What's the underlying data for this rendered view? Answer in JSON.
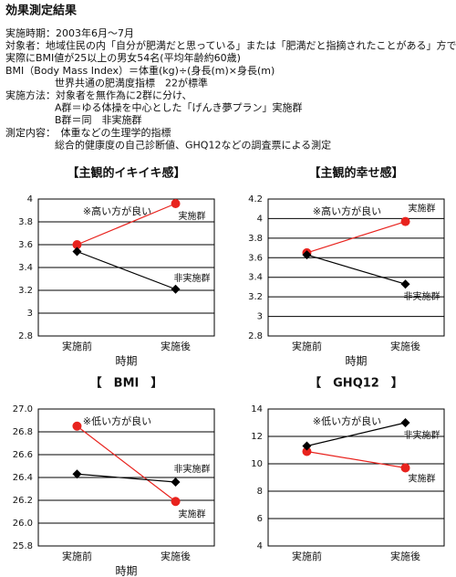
{
  "document": {
    "title": "効果測定結果",
    "lines": [
      "実施時期：2003年6月～7月",
      "対象者：地域住民の内「自分が肥満だと思っている」または「肥満だと指摘されたことがある」方で",
      "実際にBMI値が25以上の男女54名(平均年齢約60歳)",
      "BMI（Body Mass Index）＝体重(kg)÷(身長(m)×身長(m)",
      "世界共通の肥満度指標　22が標準",
      "実施方法：対象者を無作為に2群に分け、",
      "A群＝ゆる体操を中心とした「げんき夢プラン」実施群",
      "B群＝同　非実施群",
      "測定内容：　体重などの生理学的指標",
      "総合的健康度の自己診断値、GHQ12などの調査票による測定"
    ]
  },
  "chart_data": [
    {
      "type": "line",
      "title": "【主観的イキイキ感】",
      "annotation": "※高い方が良い",
      "x_label": "時期",
      "categories": [
        "実施前",
        "実施後"
      ],
      "series": [
        {
          "name": "実施群",
          "color": "#e8231e",
          "marker": "circle",
          "values": [
            3.6,
            3.96
          ]
        },
        {
          "name": "非実施群",
          "color": "#000000",
          "marker": "diamond",
          "values": [
            3.54,
            3.21
          ]
        }
      ],
      "ylim": [
        2.8,
        4
      ],
      "yticks": [
        2.8,
        3,
        3.2,
        3.4,
        3.6,
        3.8,
        4
      ],
      "grid": true
    },
    {
      "type": "line",
      "title": "【主観的幸せ感】",
      "annotation": "※高い方が良い",
      "x_label": "時期",
      "categories": [
        "実施前",
        "実施後"
      ],
      "series": [
        {
          "name": "実施群",
          "color": "#e8231e",
          "marker": "circle",
          "values": [
            3.65,
            3.97
          ]
        },
        {
          "name": "非実施群",
          "color": "#000000",
          "marker": "diamond",
          "values": [
            3.63,
            3.33
          ]
        }
      ],
      "ylim": [
        2.8,
        4.2
      ],
      "yticks": [
        2.8,
        3,
        3.2,
        3.4,
        3.6,
        3.8,
        4,
        4.2
      ],
      "grid": true
    },
    {
      "type": "line",
      "title": "【　BMI　】",
      "annotation": "※低い方が良い",
      "x_label": "時期",
      "categories": [
        "実施前",
        "実施後"
      ],
      "series": [
        {
          "name": "実施群",
          "color": "#e8231e",
          "marker": "circle",
          "values": [
            26.85,
            26.19
          ]
        },
        {
          "name": "非実施群",
          "color": "#000000",
          "marker": "diamond",
          "values": [
            26.43,
            26.36
          ]
        }
      ],
      "ylim": [
        25.8,
        27
      ],
      "yticks": [
        25.8,
        {
          "value": 26,
          "label": "26.0"
        },
        26.2,
        26.4,
        26.6,
        26.8,
        {
          "value": 27,
          "label": "27.0"
        }
      ],
      "grid": true
    },
    {
      "type": "line",
      "title": "【　GHQ12　】",
      "annotation": "※低い方が良い",
      "categories": [
        "実施前",
        "実施後"
      ],
      "series": [
        {
          "name": "実施群",
          "color": "#e8231e",
          "marker": "circle",
          "values": [
            10.9,
            9.7
          ]
        },
        {
          "name": "非実施群",
          "color": "#000000",
          "marker": "diamond",
          "values": [
            11.3,
            13
          ]
        }
      ],
      "ylim": [
        4,
        14
      ],
      "yticks": [
        4,
        6,
        8,
        10,
        12,
        14
      ],
      "grid": true
    }
  ]
}
